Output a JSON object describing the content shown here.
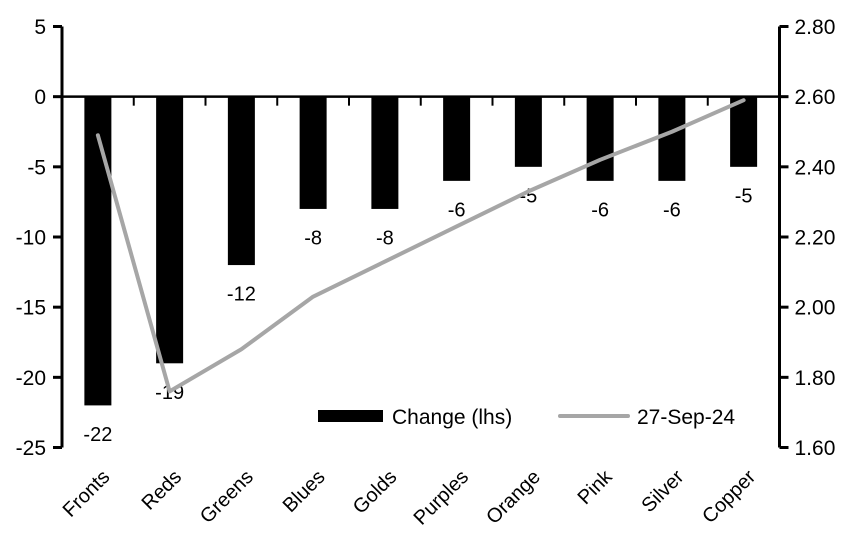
{
  "chart_data": {
    "type": "combo-bar-line",
    "categories": [
      "Fronts",
      "Reds",
      "Greens",
      "Blues",
      "Golds",
      "Purples",
      "Orange",
      "Pink",
      "Silver",
      "Copper"
    ],
    "series": [
      {
        "name": "Change (lhs)",
        "type": "bar",
        "axis": "left",
        "color": "#000000",
        "values": [
          -22,
          -19,
          -12,
          -8,
          -8,
          -6,
          -5,
          -6,
          -6,
          -5
        ],
        "data_labels": [
          "-22",
          "-19",
          "-12",
          "-8",
          "-8",
          "-6",
          "-5",
          "-6",
          "-6",
          "-5"
        ]
      },
      {
        "name": "27-Sep-24",
        "type": "line",
        "axis": "right",
        "color": "#a6a6a6",
        "values": [
          2.49,
          1.76,
          1.88,
          2.03,
          2.13,
          2.23,
          2.33,
          2.42,
          2.5,
          2.59
        ]
      }
    ],
    "left_axis": {
      "min": -25,
      "max": 5,
      "step": 5,
      "tick_labels": [
        "5",
        "0",
        "-5",
        "-10",
        "-15",
        "-20",
        "-25"
      ]
    },
    "right_axis": {
      "min": 1.6,
      "max": 2.8,
      "step": 0.2,
      "tick_labels": [
        "2.80",
        "2.60",
        "2.40",
        "2.20",
        "2.00",
        "1.80",
        "1.60"
      ]
    },
    "legend": {
      "position": "inside-bottom",
      "entries": [
        {
          "label": "Change (lhs)",
          "swatch": "bar",
          "color": "#000000"
        },
        {
          "label": "27-Sep-24",
          "swatch": "line",
          "color": "#a6a6a6"
        }
      ]
    },
    "grid": "off",
    "background": "#ffffff",
    "axis_color": "#000000"
  }
}
